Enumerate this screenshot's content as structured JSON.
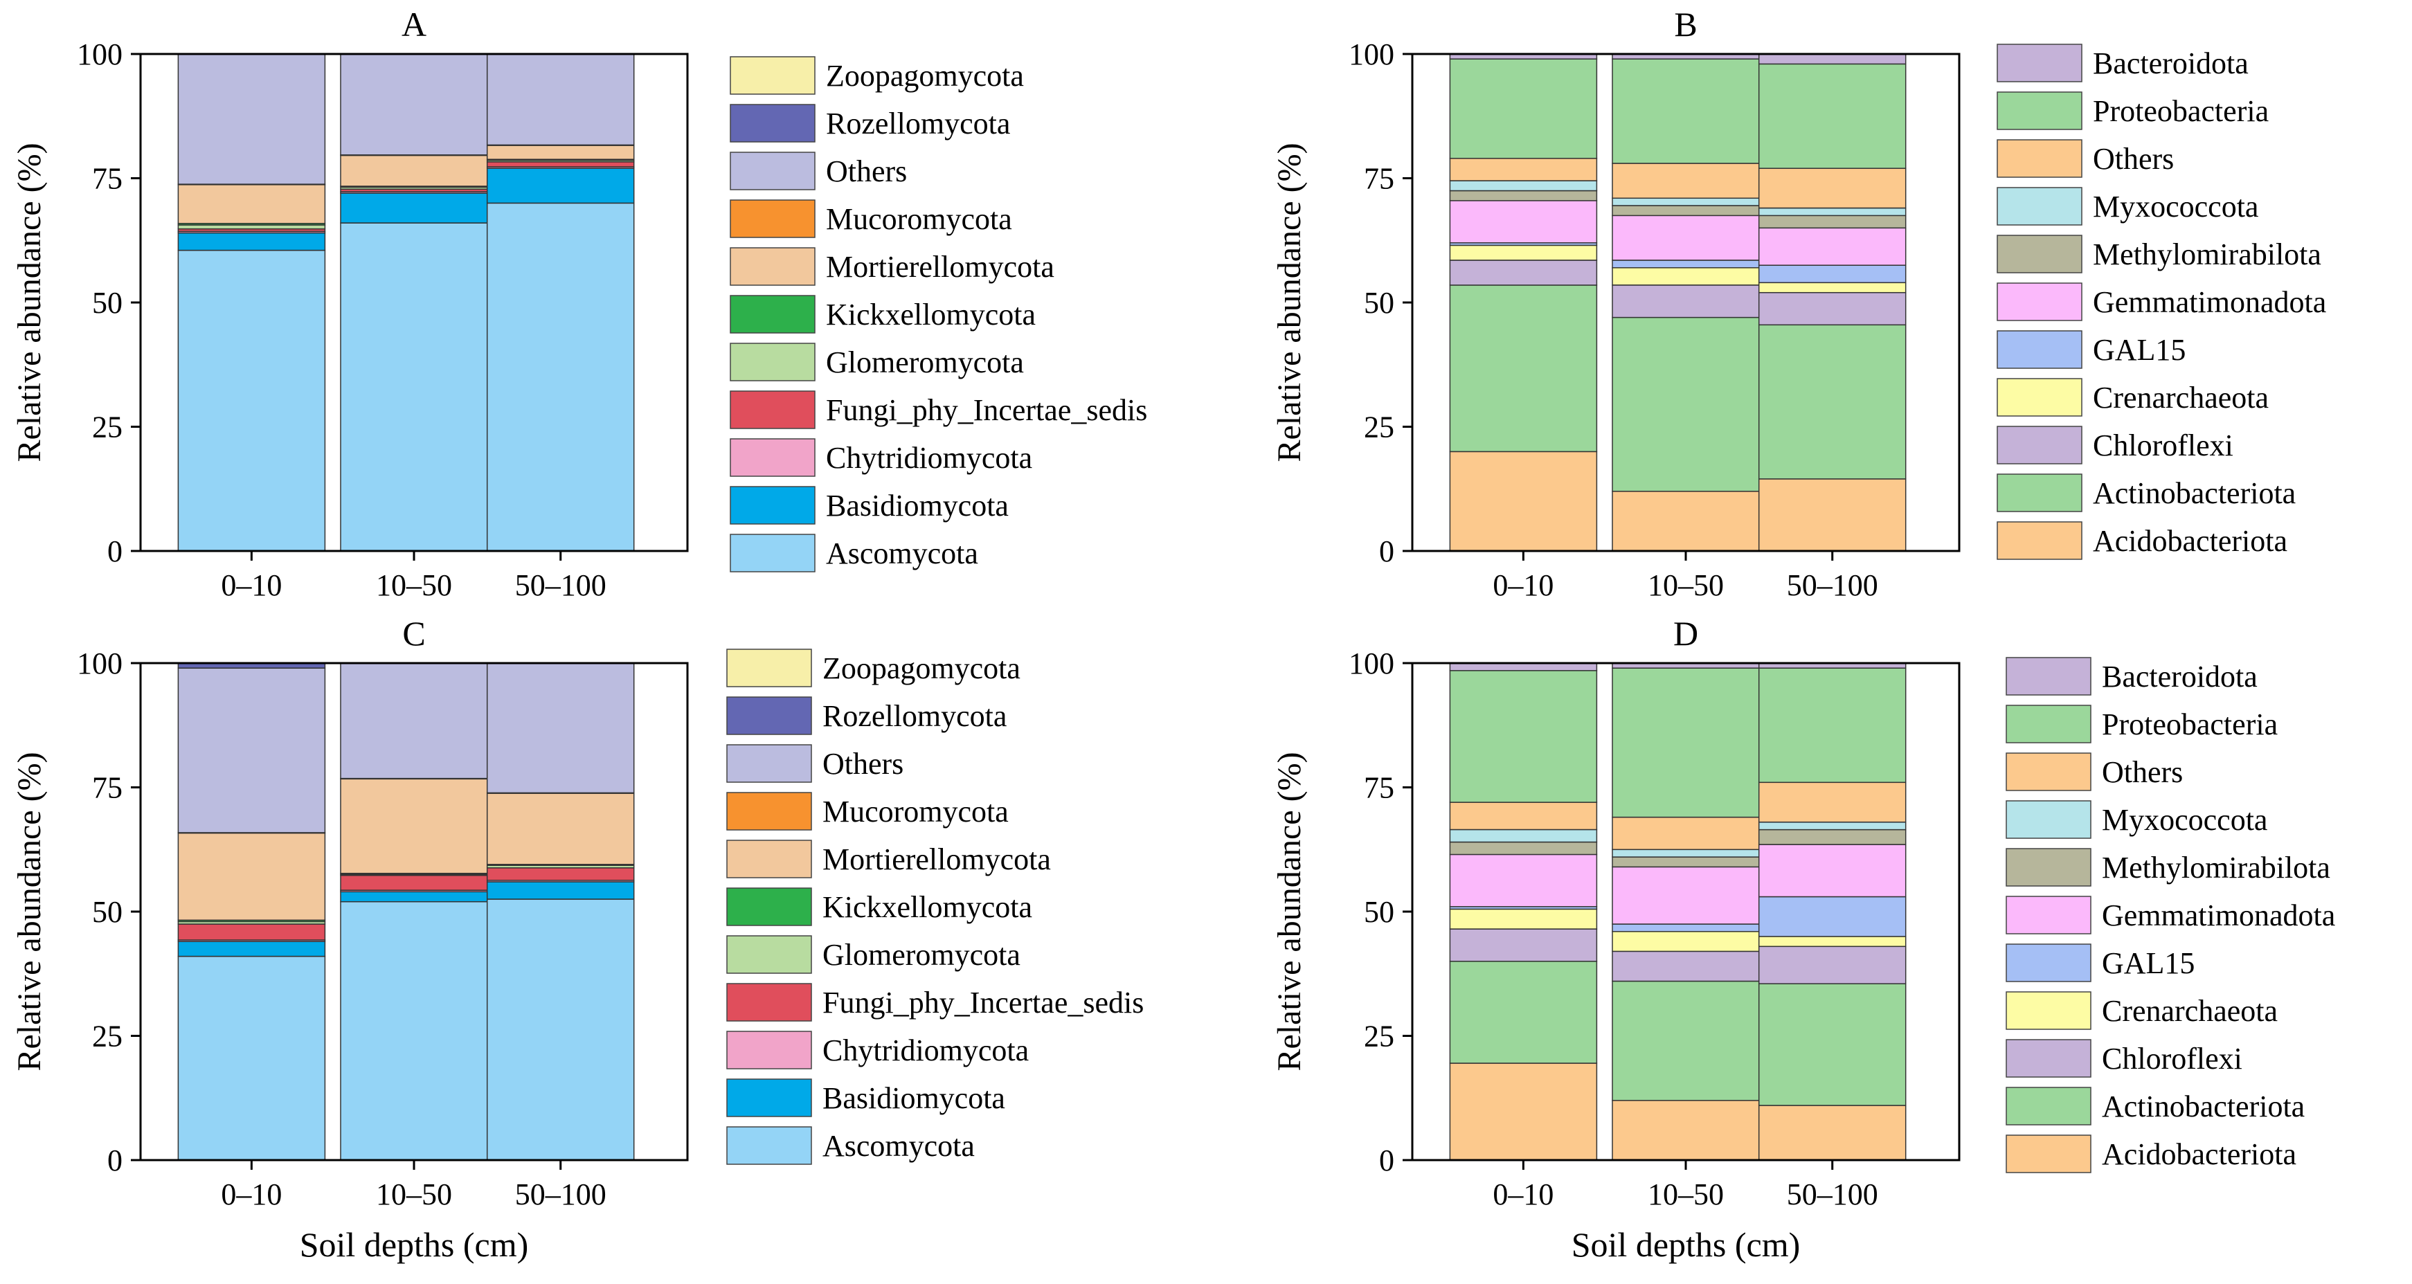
{
  "figure": {
    "xlabel": "Soil depths (cm)",
    "ylabel": "Relative abundance (%)"
  },
  "chart_data": [
    {
      "type": "bar",
      "stacked": true,
      "title": "A",
      "xlabel": "",
      "ylabel": "Relative abundance (%)",
      "ylim": [
        0,
        100
      ],
      "yticks": [
        0,
        25,
        50,
        75,
        100
      ],
      "categories": [
        "0–10",
        "10–50",
        "50–100"
      ],
      "series": [
        {
          "name": "Ascomycota",
          "color": "#94d4f6",
          "values": [
            60.5,
            66.0,
            70.0
          ]
        },
        {
          "name": "Basidiomycota",
          "color": "#00a9e8",
          "values": [
            3.5,
            6.0,
            7.0
          ]
        },
        {
          "name": "Chytridiomycota",
          "color": "#f1a4c9",
          "values": [
            0.3,
            0.3,
            0.3
          ]
        },
        {
          "name": "Fungi_phy_Incertae_sedis",
          "color": "#e04e5c",
          "values": [
            0.5,
            0.5,
            1.0
          ]
        },
        {
          "name": "Glomeromycota",
          "color": "#b8dca0",
          "values": [
            0.8,
            0.4,
            0.3
          ]
        },
        {
          "name": "Kickxellomycota",
          "color": "#2db04b",
          "values": [
            0.3,
            0.2,
            0.2
          ]
        },
        {
          "name": "Mortierellomycota",
          "color": "#f2c89d",
          "values": [
            7.8,
            6.2,
            2.8
          ]
        },
        {
          "name": "Mucoromycota",
          "color": "#f7922f",
          "values": [
            0.1,
            0.1,
            0.1
          ]
        },
        {
          "name": "Others",
          "color": "#bbbcdf",
          "values": [
            26.2,
            20.3,
            18.3
          ]
        },
        {
          "name": "Rozellomycota",
          "color": "#6367b3",
          "values": [
            0.0,
            0.0,
            0.0
          ]
        },
        {
          "name": "Zoopagomycota",
          "color": "#f7efa9",
          "values": [
            0.0,
            0.0,
            0.0
          ]
        }
      ]
    },
    {
      "type": "bar",
      "stacked": true,
      "title": "B",
      "xlabel": "",
      "ylabel": "Relative abundance (%)",
      "ylim": [
        0,
        100
      ],
      "yticks": [
        0,
        25,
        50,
        75,
        100
      ],
      "categories": [
        "0–10",
        "10–50",
        "50–100"
      ],
      "series": [
        {
          "name": "Acidobacteriota",
          "color": "#fcc98d",
          "values": [
            20.0,
            12.0,
            14.5
          ]
        },
        {
          "name": "Actinobacteriota",
          "color": "#9bd79b",
          "values": [
            33.5,
            35.0,
            31.0
          ]
        },
        {
          "name": "Chloroflexi",
          "color": "#c5b2d8",
          "values": [
            5.0,
            6.5,
            6.5
          ]
        },
        {
          "name": "Crenarchaeota",
          "color": "#fdfca4",
          "values": [
            3.0,
            3.5,
            2.0
          ]
        },
        {
          "name": "GAL15",
          "color": "#a5bff5",
          "values": [
            0.5,
            1.5,
            3.5
          ]
        },
        {
          "name": "Gemmatimonadota",
          "color": "#fbb9fb",
          "values": [
            8.5,
            9.0,
            7.5
          ]
        },
        {
          "name": "Methylomirabilota",
          "color": "#b6b69b",
          "values": [
            2.0,
            2.0,
            2.5
          ]
        },
        {
          "name": "Myxococcota",
          "color": "#b5e4ea",
          "values": [
            2.0,
            1.5,
            1.5
          ]
        },
        {
          "name": "Others",
          "color": "#fcc98d",
          "values": [
            4.5,
            7.0,
            8.0
          ]
        },
        {
          "name": "Proteobacteria",
          "color": "#9bd79b",
          "values": [
            20.0,
            21.0,
            21.0
          ]
        },
        {
          "name": "Bacteroidota",
          "color": "#c5b2d8",
          "values": [
            1.0,
            1.0,
            2.0
          ]
        }
      ]
    },
    {
      "type": "bar",
      "stacked": true,
      "title": "C",
      "xlabel": "Soil depths (cm)",
      "ylabel": "Relative abundance (%)",
      "ylim": [
        0,
        100
      ],
      "yticks": [
        0,
        25,
        50,
        75,
        100
      ],
      "categories": [
        "0–10",
        "10–50",
        "50–100"
      ],
      "series": [
        {
          "name": "Ascomycota",
          "color": "#94d4f6",
          "values": [
            41.0,
            52.0,
            52.5
          ]
        },
        {
          "name": "Basidiomycota",
          "color": "#00a9e8",
          "values": [
            3.0,
            2.0,
            3.5
          ]
        },
        {
          "name": "Chytridiomycota",
          "color": "#f1a4c9",
          "values": [
            0.3,
            0.3,
            0.3
          ]
        },
        {
          "name": "Fungi_phy_Incertae_sedis",
          "color": "#e04e5c",
          "values": [
            3.2,
            3.0,
            2.5
          ]
        },
        {
          "name": "Glomeromycota",
          "color": "#b8dca0",
          "values": [
            0.5,
            0.2,
            0.5
          ]
        },
        {
          "name": "Kickxellomycota",
          "color": "#2db04b",
          "values": [
            0.3,
            0.2,
            0.2
          ]
        },
        {
          "name": "Mortierellomycota",
          "color": "#f2c89d",
          "values": [
            17.5,
            19.0,
            14.3
          ]
        },
        {
          "name": "Mucoromycota",
          "color": "#f7922f",
          "values": [
            0.1,
            0.1,
            0.1
          ]
        },
        {
          "name": "Others",
          "color": "#bbbcdf",
          "values": [
            33.1,
            23.2,
            26.1
          ]
        },
        {
          "name": "Rozellomycota",
          "color": "#6367b3",
          "values": [
            1.0,
            0.0,
            0.0
          ]
        },
        {
          "name": "Zoopagomycota",
          "color": "#f7efa9",
          "values": [
            0.0,
            0.0,
            0.0
          ]
        }
      ]
    },
    {
      "type": "bar",
      "stacked": true,
      "title": "D",
      "xlabel": "Soil depths (cm)",
      "ylabel": "Relative abundance (%)",
      "ylim": [
        0,
        100
      ],
      "yticks": [
        0,
        25,
        50,
        75,
        100
      ],
      "categories": [
        "0–10",
        "10–50",
        "50–100"
      ],
      "series": [
        {
          "name": "Acidobacteriota",
          "color": "#fcc98d",
          "values": [
            19.5,
            12.0,
            11.0
          ]
        },
        {
          "name": "Actinobacteriota",
          "color": "#9bd79b",
          "values": [
            20.5,
            24.0,
            24.5
          ]
        },
        {
          "name": "Chloroflexi",
          "color": "#c5b2d8",
          "values": [
            6.5,
            6.0,
            7.5
          ]
        },
        {
          "name": "Crenarchaeota",
          "color": "#fdfca4",
          "values": [
            4.0,
            4.0,
            2.0
          ]
        },
        {
          "name": "GAL15",
          "color": "#a5bff5",
          "values": [
            0.5,
            1.5,
            8.0
          ]
        },
        {
          "name": "Gemmatimonadota",
          "color": "#fbb9fb",
          "values": [
            10.5,
            11.5,
            10.5
          ]
        },
        {
          "name": "Methylomirabilota",
          "color": "#b6b69b",
          "values": [
            2.5,
            2.0,
            3.0
          ]
        },
        {
          "name": "Myxococcota",
          "color": "#b5e4ea",
          "values": [
            2.5,
            1.5,
            1.5
          ]
        },
        {
          "name": "Others",
          "color": "#fcc98d",
          "values": [
            5.5,
            6.5,
            8.0
          ]
        },
        {
          "name": "Proteobacteria",
          "color": "#9bd79b",
          "values": [
            26.5,
            30.0,
            23.0
          ]
        },
        {
          "name": "Bacteroidota",
          "color": "#c5b2d8",
          "values": [
            1.5,
            1.0,
            1.0
          ]
        }
      ]
    }
  ]
}
